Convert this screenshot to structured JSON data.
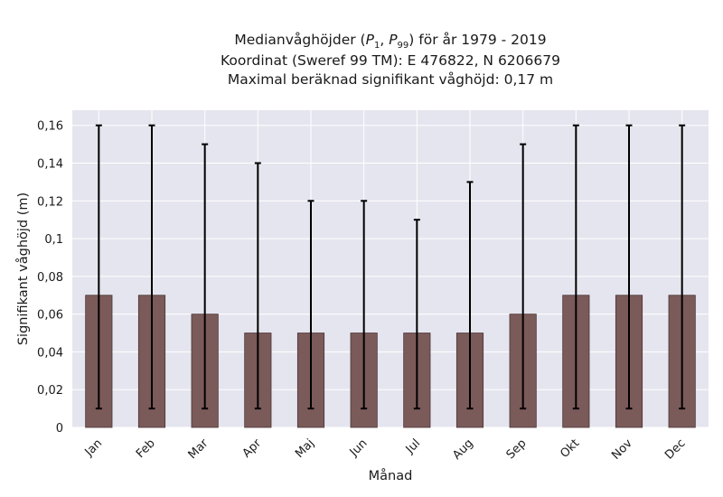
{
  "chart_data": {
    "type": "bar",
    "title_lines": [
      "Medianvåghöjder (P1, P99) för år 1979 - 2019",
      "Koordinat (Sweref 99 TM): E 476822, N 6206679",
      "Maximal beräknad signifikant våghöjd: 0,17 m"
    ],
    "xlabel": "Månad",
    "ylabel": "Signifikant våghöjd (m)",
    "categories": [
      "Jan",
      "Feb",
      "Mar",
      "Apr",
      "Maj",
      "Jun",
      "Jul",
      "Aug",
      "Sep",
      "Okt",
      "Nov",
      "Dec"
    ],
    "series": [
      {
        "values": [
          0.07,
          0.07,
          0.06,
          0.05,
          0.05,
          0.05,
          0.05,
          0.05,
          0.06,
          0.07,
          0.07,
          0.07
        ],
        "error_low": [
          0.01,
          0.01,
          0.01,
          0.01,
          0.01,
          0.01,
          0.01,
          0.01,
          0.01,
          0.01,
          0.01,
          0.01
        ],
        "error_high": [
          0.16,
          0.16,
          0.15,
          0.14,
          0.12,
          0.12,
          0.11,
          0.13,
          0.15,
          0.16,
          0.16,
          0.16
        ]
      }
    ],
    "ylim": [
      0,
      0.168
    ],
    "yticks": [
      0,
      0.02,
      0.04,
      0.06,
      0.08,
      0.1,
      0.12,
      0.14,
      0.16
    ],
    "ytick_labels": [
      "0",
      "0,02",
      "0,04",
      "0,06",
      "0,08",
      "0,1",
      "0,12",
      "0,14",
      "0,16"
    ],
    "grid": true,
    "colors": {
      "bar_fill": "#7b5a5a",
      "bar_edge": "#4a3535",
      "error_bar": "#000000",
      "plot_background": "#e5e5ef",
      "grid": "#ffffff"
    }
  }
}
